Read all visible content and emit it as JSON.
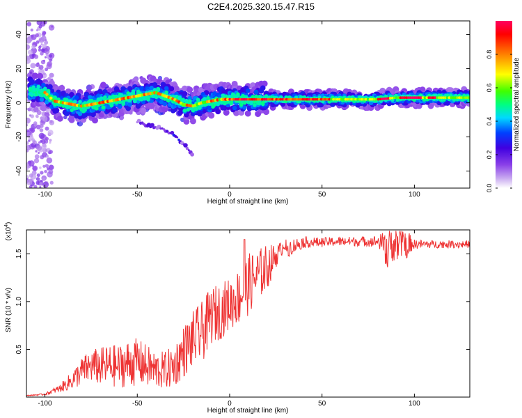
{
  "figure_title": "C2E4.2025.320.15.47.R15",
  "chart_data": [
    {
      "type": "heatmap",
      "title": "C2E4.2025.320.15.47.R15",
      "xlabel": "Height of straight line (km)",
      "ylabel": "Frequency (Hz)",
      "xlim": [
        -110,
        130
      ],
      "ylim": [
        -50,
        48
      ],
      "x_ticks": [
        -100,
        -50,
        0,
        50,
        100
      ],
      "x_tick_labels": [
        "-100",
        "-50",
        "0",
        "50",
        "100"
      ],
      "y_ticks": [
        -40,
        -20,
        0,
        20,
        40
      ],
      "y_tick_labels": [
        "-40",
        "-20",
        "0",
        "20",
        "40"
      ],
      "colorbar": {
        "label": "Normalized spectral amplitude",
        "range": [
          0,
          1
        ],
        "ticks": [
          0.0,
          0.2,
          0.4,
          0.6,
          0.8
        ],
        "tick_labels": [
          "0.0",
          "0.2",
          "0.4",
          "0.6",
          "0.8"
        ],
        "colors": [
          "#ffffff",
          "#c8a8f0",
          "#8a40e8",
          "#4000e0",
          "#0040ff",
          "#00d8ff",
          "#00ff80",
          "#40ff00",
          "#ffff00",
          "#ff8000",
          "#ff0000",
          "#ff0060"
        ]
      },
      "ridge_track": {
        "description_values": "dominant frequency (Hz) vs height (km)",
        "x": [
          -107,
          -100,
          -95,
          -90,
          -85,
          -80,
          -75,
          -70,
          -65,
          -60,
          -55,
          -50,
          -45,
          -40,
          -35,
          -30,
          -25,
          -20,
          -15,
          -10,
          -5,
          0,
          5,
          10,
          15,
          20,
          30,
          40,
          50,
          60,
          70,
          80,
          90,
          100,
          110,
          120,
          130
        ],
        "y": [
          7,
          6,
          1,
          0,
          -1,
          -2,
          -1,
          0,
          1,
          2,
          3,
          4,
          5,
          6,
          4,
          2,
          -1,
          -2,
          0,
          1,
          2,
          2,
          2,
          2,
          2,
          2,
          2,
          2,
          2,
          2,
          2,
          2,
          3,
          3,
          3,
          3,
          3
        ]
      },
      "secondary_branch": {
        "x": [
          -50,
          -45,
          -40,
          -35,
          -30,
          -25,
          -20
        ],
        "y": [
          -11,
          -13,
          -14,
          -16,
          -19,
          -24,
          -30
        ]
      }
    },
    {
      "type": "line",
      "xlabel": "Height of straight line (km)",
      "ylabel": "SNR (10 * v/v)",
      "y_multiplier": "(x10",
      "y_multiplier_exp": "4",
      "y_multiplier_close": ")",
      "xlim": [
        -110,
        130
      ],
      "ylim": [
        0,
        1.75
      ],
      "x_ticks": [
        -100,
        -50,
        0,
        50,
        100
      ],
      "x_tick_labels": [
        "-100",
        "-50",
        "0",
        "50",
        "100"
      ],
      "y_ticks": [
        0.5,
        1.0,
        1.5
      ],
      "y_tick_labels": [
        "0.5",
        "1.0",
        "1.5"
      ],
      "series": [
        {
          "name": "SNR",
          "color": "#ee3333",
          "envelope": {
            "x": [
              -110,
              -100,
              -92,
              -85,
              -80,
              -75,
              -70,
              -65,
              -60,
              -55,
              -50,
              -45,
              -40,
              -35,
              -30,
              -25,
              -20,
              -15,
              -10,
              -5,
              0,
              5,
              10,
              15,
              20,
              25,
              30,
              40,
              50,
              60,
              70,
              80,
              85,
              90,
              95,
              100,
              110,
              120,
              130
            ],
            "base": [
              0.01,
              0.02,
              0.05,
              0.08,
              0.12,
              0.15,
              0.12,
              0.1,
              0.1,
              0.1,
              0.12,
              0.1,
              0.08,
              0.08,
              0.1,
              0.2,
              0.3,
              0.35,
              0.55,
              0.6,
              0.7,
              0.75,
              0.85,
              1.0,
              1.1,
              1.35,
              1.55,
              1.62,
              1.62,
              1.63,
              1.63,
              1.63,
              1.6,
              1.6,
              1.62,
              1.6,
              1.6,
              1.6,
              1.6
            ],
            "noise": [
              0.01,
              0.02,
              0.08,
              0.2,
              0.3,
              0.35,
              0.4,
              0.45,
              0.45,
              0.5,
              0.5,
              0.45,
              0.4,
              0.4,
              0.45,
              0.55,
              0.6,
              0.65,
              0.6,
              0.6,
              0.55,
              0.6,
              0.65,
              0.55,
              0.5,
              0.25,
              0.1,
              0.06,
              0.05,
              0.05,
              0.05,
              0.06,
              0.15,
              0.2,
              0.15,
              0.05,
              0.04,
              0.04,
              0.04
            ]
          }
        }
      ]
    }
  ]
}
